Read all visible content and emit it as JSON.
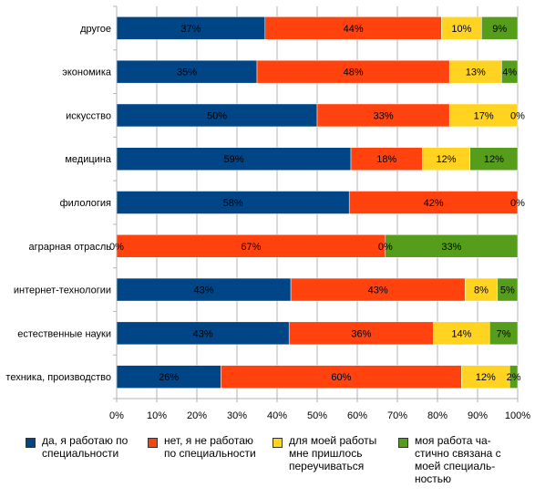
{
  "chart_data": {
    "type": "bar",
    "orientation": "horizontal",
    "stacked": "percent",
    "categories": [
      "другое",
      "экономика",
      "искусство",
      "медицина",
      "филология",
      "аграрная отрасль",
      "интернет-технологии",
      "естественные науки",
      "техника, производство"
    ],
    "series": [
      {
        "name": "да, я работаю по\nспециальности",
        "color": "#004586",
        "values": [
          37,
          35,
          50,
          59,
          58,
          0,
          43,
          43,
          26
        ],
        "labels": [
          "37%",
          "35%",
          "50%",
          "59%",
          "58%",
          "0%",
          "43%",
          "43%",
          "26%"
        ]
      },
      {
        "name": "нет, я не работаю\nпо специальности",
        "color": "#ff420e",
        "values": [
          44,
          48,
          33,
          18,
          42,
          67,
          43,
          36,
          60
        ],
        "labels": [
          "44%",
          "48%",
          "33%",
          "18%",
          "42%",
          "67%",
          "43%",
          "36%",
          "60%"
        ]
      },
      {
        "name": "для моей работы\nмне пришлось\nпереучиваться",
        "color": "#ffd320",
        "values": [
          10,
          13,
          17,
          12,
          0,
          0,
          8,
          14,
          12
        ],
        "labels": [
          "10%",
          "13%",
          "17%",
          "12%",
          "",
          "0%",
          "8%",
          "14%",
          "12%"
        ]
      },
      {
        "name": "моя работа ча-\nстично  связана с\nмоей специаль-\nностью",
        "color": "#579d1c",
        "values": [
          9,
          4,
          0,
          12,
          0,
          33,
          5,
          7,
          2
        ],
        "labels": [
          "9%",
          "4%",
          "0%",
          "12%",
          "0%",
          "33%",
          "5%",
          "7%",
          "2%"
        ]
      }
    ],
    "xlim": [
      0,
      100
    ],
    "xticks": [
      "0%",
      "10%",
      "20%",
      "30%",
      "40%",
      "50%",
      "60%",
      "70%",
      "80%",
      "90%",
      "100%"
    ],
    "grid": true,
    "legend_position": "bottom"
  }
}
